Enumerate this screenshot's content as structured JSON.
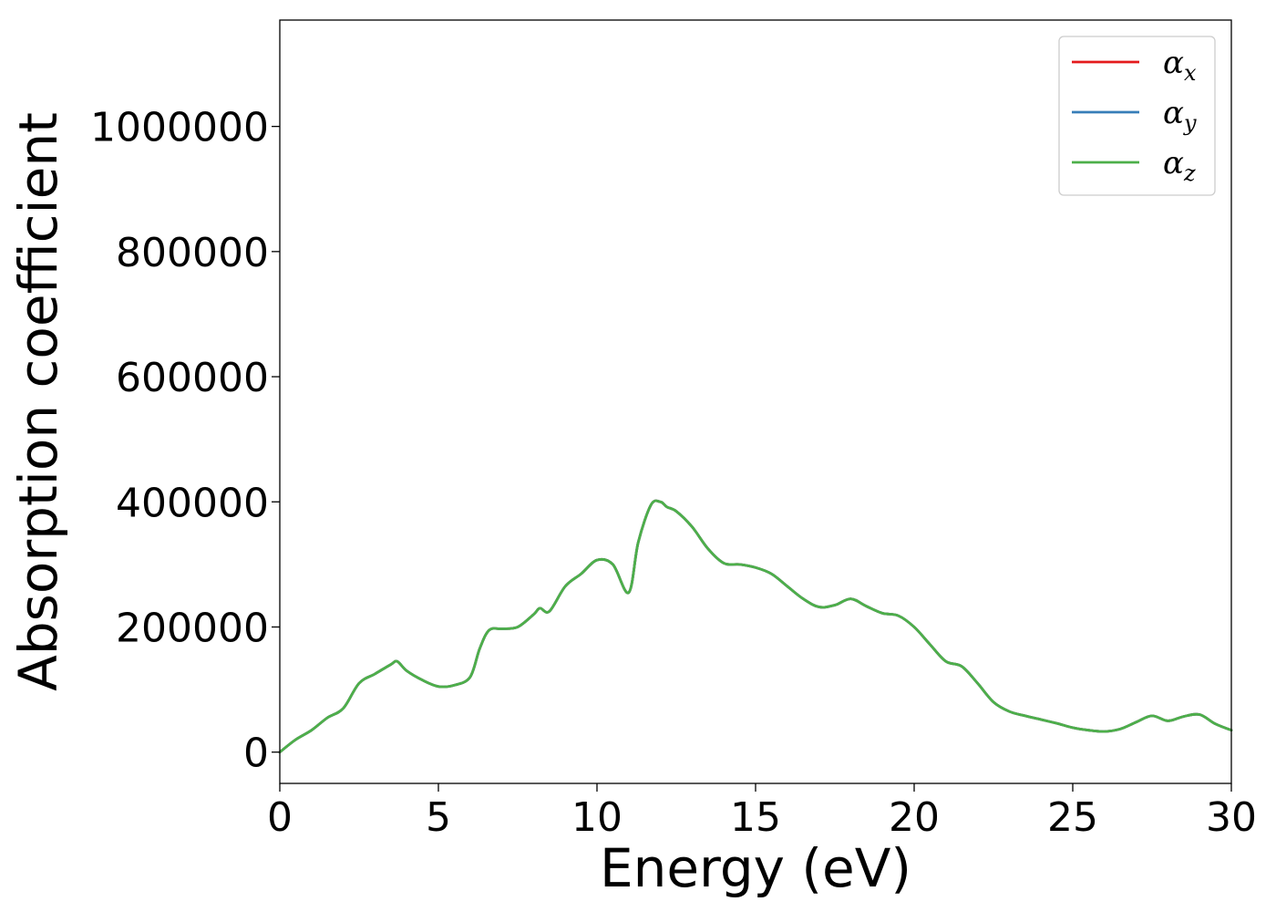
{
  "chart_data": {
    "type": "line",
    "title": "",
    "xlabel": "Energy (eV)",
    "ylabel": "Absorption coefficient",
    "xlim": [
      0,
      30
    ],
    "ylim": [
      -50000,
      1170000
    ],
    "xticks": [
      0,
      5,
      10,
      15,
      20,
      25,
      30
    ],
    "yticks": [
      0,
      200000,
      400000,
      600000,
      800000,
      1000000
    ],
    "xtick_labels": [
      "0",
      "5",
      "10",
      "15",
      "20",
      "25",
      "30"
    ],
    "ytick_labels": [
      "0",
      "200000",
      "400000",
      "600000",
      "800000",
      "1000000"
    ],
    "grid": false,
    "legend_position": "top-right",
    "x": [
      0,
      0.5,
      1.0,
      1.5,
      2.0,
      2.5,
      3.0,
      3.5,
      3.7,
      4.0,
      4.5,
      5.0,
      5.5,
      6.0,
      6.3,
      6.6,
      7.0,
      7.5,
      8.0,
      8.2,
      8.5,
      9.0,
      9.5,
      10.0,
      10.5,
      11.0,
      11.3,
      11.7,
      12.0,
      12.2,
      12.5,
      13.0,
      13.5,
      14.0,
      14.5,
      15.0,
      15.5,
      16.0,
      16.5,
      17.0,
      17.5,
      18.0,
      18.5,
      19.0,
      19.5,
      20.0,
      20.5,
      21.0,
      21.5,
      22.0,
      22.5,
      23.0,
      23.5,
      24.0,
      24.5,
      25.0,
      25.5,
      26.0,
      26.5,
      27.0,
      27.5,
      28.0,
      28.5,
      29.0,
      29.5,
      30.0
    ],
    "series": [
      {
        "name": "x",
        "color": "#e41a1c",
        "values": [
          0,
          20000,
          35000,
          55000,
          70000,
          110000,
          125000,
          140000,
          145000,
          130000,
          115000,
          105000,
          107000,
          120000,
          165000,
          195000,
          197000,
          200000,
          220000,
          230000,
          225000,
          265000,
          285000,
          307000,
          300000,
          255000,
          335000,
          395000,
          400000,
          392000,
          385000,
          360000,
          325000,
          302000,
          300000,
          295000,
          285000,
          265000,
          245000,
          232000,
          235000,
          245000,
          233000,
          222000,
          218000,
          200000,
          172000,
          145000,
          137000,
          110000,
          80000,
          65000,
          58000,
          52000,
          46000,
          39000,
          35000,
          33000,
          37000,
          48000,
          58000,
          50000,
          57000,
          60000,
          45000,
          35000
        ]
      },
      {
        "name": "y",
        "color": "#377eb8",
        "values": [
          0,
          20000,
          35000,
          55000,
          70000,
          110000,
          125000,
          140000,
          145000,
          130000,
          115000,
          105000,
          107000,
          120000,
          165000,
          195000,
          197000,
          200000,
          220000,
          230000,
          225000,
          265000,
          285000,
          307000,
          300000,
          255000,
          335000,
          395000,
          400000,
          392000,
          385000,
          360000,
          325000,
          302000,
          300000,
          295000,
          285000,
          265000,
          245000,
          232000,
          235000,
          245000,
          233000,
          222000,
          218000,
          200000,
          172000,
          145000,
          137000,
          110000,
          80000,
          65000,
          58000,
          52000,
          46000,
          39000,
          35000,
          33000,
          37000,
          48000,
          58000,
          50000,
          57000,
          60000,
          45000,
          35000
        ]
      },
      {
        "name": "z",
        "color": "#4daf4a",
        "values": [
          0,
          20000,
          35000,
          55000,
          70000,
          110000,
          125000,
          140000,
          145000,
          130000,
          115000,
          105000,
          107000,
          120000,
          165000,
          195000,
          197000,
          200000,
          220000,
          230000,
          225000,
          265000,
          285000,
          307000,
          300000,
          255000,
          335000,
          395000,
          400000,
          392000,
          385000,
          360000,
          325000,
          302000,
          300000,
          295000,
          285000,
          265000,
          245000,
          232000,
          235000,
          245000,
          233000,
          222000,
          218000,
          200000,
          172000,
          145000,
          137000,
          110000,
          80000,
          65000,
          58000,
          52000,
          46000,
          39000,
          35000,
          33000,
          37000,
          48000,
          58000,
          50000,
          57000,
          60000,
          45000,
          35000
        ]
      }
    ],
    "legend_symbol": "α"
  }
}
